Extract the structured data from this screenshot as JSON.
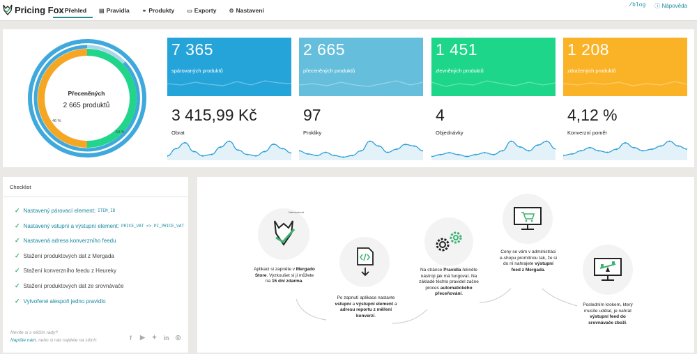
{
  "brand": {
    "name": "Pricing Fox"
  },
  "nav": {
    "items": [
      {
        "label": "Přehled",
        "icon": "home-icon"
      },
      {
        "label": "Pravidla",
        "icon": "rules-icon"
      },
      {
        "label": "Produkty",
        "icon": "products-icon"
      },
      {
        "label": "Exporty",
        "icon": "export-icon"
      },
      {
        "label": "Nastavení",
        "icon": "gear-icon"
      }
    ],
    "blog": "/blog",
    "help": "Nápověda"
  },
  "donut": {
    "title": "Přeceněných",
    "count": "2 665 produktů",
    "left_pct": "46 %",
    "right_pct": "54 %",
    "colors": {
      "outer": "#3fa9dc",
      "green": "#22d58a",
      "orange": "#f5a623",
      "light": "#a9d6ec"
    }
  },
  "cards": [
    {
      "num": "7 365",
      "label": "spárovaných produktů",
      "color": "#25a4da"
    },
    {
      "num": "2 665",
      "label": "přeceněných produktů",
      "color": "#65bfdc"
    },
    {
      "num": "1 451",
      "label": "zlevněných produktů",
      "color": "#1dd68a"
    },
    {
      "num": "1 208",
      "label": "zdražených produktů",
      "color": "#fab327"
    }
  ],
  "metrics": [
    {
      "num": "3 415,99 Kč",
      "label": "Obrat"
    },
    {
      "num": "97",
      "label": "Prokliky"
    },
    {
      "num": "4",
      "label": "Objednávky"
    },
    {
      "num": "4,12 %",
      "label": "Konverzní poměr"
    }
  ],
  "checklist": {
    "title": "Checklist",
    "items": [
      {
        "text": "Nastavený párovací element:",
        "code": "ITEM_ID",
        "done": true
      },
      {
        "text": "Nastavený vstupní a výstupní element:",
        "code": "PRICE_VAT => PF_PRICE_VAT",
        "done": true
      },
      {
        "text": "Nastavená adresa konverzního feedu",
        "code": "",
        "done": true
      },
      {
        "text": "Stažení produktových dat z Mergada",
        "code": "",
        "done": true
      },
      {
        "text": "Stažení konverzního feedu z Heureky",
        "code": "",
        "done": true
      },
      {
        "text": "Stažení produktových dat ze srovnávače",
        "code": "",
        "done": true
      },
      {
        "text": "Vytvořené alespoň jedno pravidlo",
        "code": "",
        "done": true
      }
    ],
    "help_q": "Nevíte si s něčím rady?",
    "help_link": "Napište nám",
    "help_rest": ", nebo si nás najdete na sítích:",
    "socials": [
      "facebook-icon",
      "youtube-icon",
      "twitter-icon",
      "linkedin-icon",
      "instagram-icon"
    ]
  },
  "onboarding": {
    "step1": {
      "pre": "Aplikaci si zapněte v ",
      "b1": "Mergado Store",
      "mid": ". Vyzkoušet si ji můžete na ",
      "b2": "15 dní zdarma",
      "end": "."
    },
    "step2": {
      "pre": "Po zapnutí aplikace nastavte ",
      "b1": "vstupní",
      "mid": " a ",
      "b2": "výstupní element",
      "mid2": " a ",
      "b3": "adresu reportu z měření konverzí",
      "end": "."
    },
    "step3": {
      "pre": "Na stránce ",
      "b1": "Pravidla",
      "mid": " řekněte nástroji jak má fungovat. Na základě těchto pravidel začne proces ",
      "b2": "automatického přeceňování",
      "end": "."
    },
    "step4": {
      "pre": "Ceny se vám v administraci e-shopu promítnou tak, že si do ní nahrajete ",
      "b1": "výstupní feed z Mergada",
      "end": "."
    },
    "step5": {
      "pre": "Posledním krokem, který musíte udělat, je nahrát ",
      "b1": "výstupní feed do srovnávače zboží",
      "end": "."
    },
    "badge": "Nainstalovat"
  },
  "chart_data": [
    {
      "type": "area",
      "label": "Obrat",
      "values": [
        3,
        8,
        12,
        6,
        3,
        4,
        9,
        13,
        7,
        4,
        3,
        6,
        11,
        8,
        5
      ]
    },
    {
      "type": "area",
      "label": "Prokliky",
      "values": [
        6,
        4,
        3,
        5,
        3,
        2,
        3,
        6,
        12,
        9,
        5,
        7,
        10,
        9,
        6
      ]
    },
    {
      "type": "area",
      "label": "Objednávky",
      "values": [
        2,
        3,
        4,
        3,
        2,
        3,
        4,
        3,
        5,
        10,
        7,
        5,
        8,
        10,
        6
      ]
    },
    {
      "type": "area",
      "label": "Konverzní poměr",
      "values": [
        3,
        4,
        6,
        8,
        6,
        5,
        7,
        11,
        8,
        6,
        7,
        9,
        12,
        9,
        7
      ]
    }
  ]
}
